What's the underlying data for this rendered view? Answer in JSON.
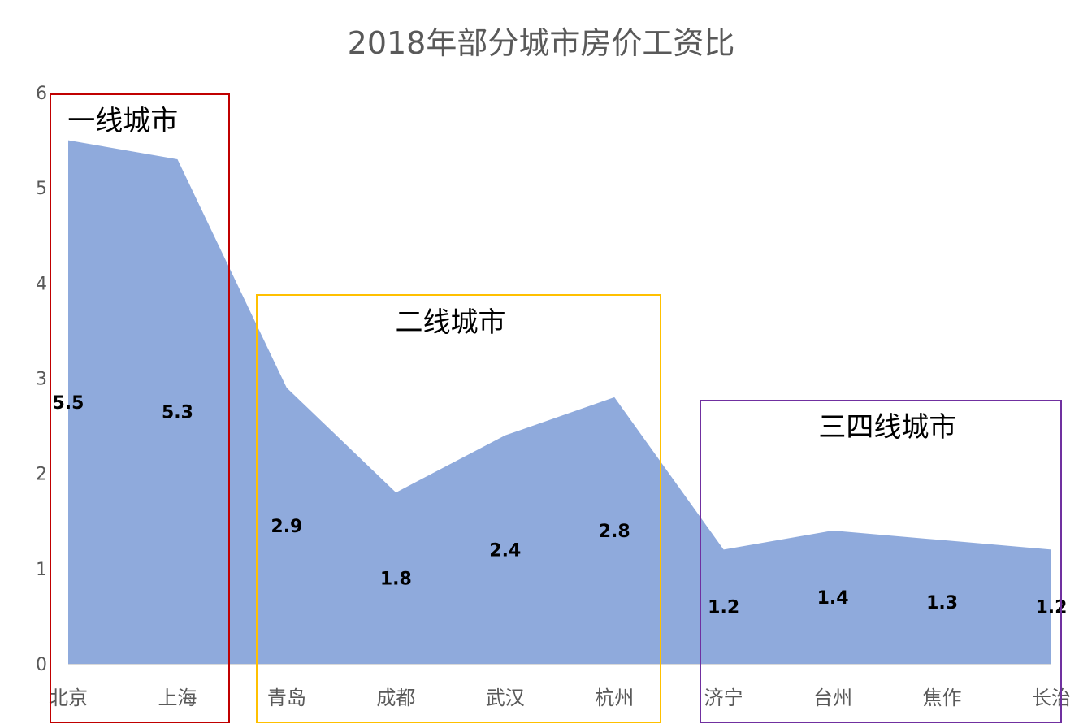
{
  "chart_data": {
    "type": "area",
    "title": "2018年部分城市房价工资比",
    "categories": [
      "北京",
      "上海",
      "青岛",
      "成都",
      "武汉",
      "杭州",
      "济宁",
      "台州",
      "焦作",
      "长治"
    ],
    "values": [
      5.5,
      5.3,
      2.9,
      1.8,
      2.4,
      2.8,
      1.2,
      1.4,
      1.3,
      1.2
    ],
    "data_labels": [
      "5.5",
      "5.3",
      "2.9",
      "1.8",
      "2.4",
      "2.8",
      "1.2",
      "1.4",
      "1.3",
      "1.2"
    ],
    "ylim": [
      0,
      6
    ],
    "yticks": [
      "0",
      "1",
      "2",
      "3",
      "4",
      "5",
      "6"
    ],
    "grid": false,
    "legend": "none",
    "colors": {
      "area": "#8faadc",
      "tier1": "#c00000",
      "tier2": "#ffc000",
      "tier3": "#7030a0"
    },
    "groups": [
      {
        "label": "一线城市",
        "from": 0,
        "to": 1,
        "color": "#c00000"
      },
      {
        "label": "二线城市",
        "from": 2,
        "to": 5,
        "color": "#ffc000"
      },
      {
        "label": "三四线城市",
        "from": 6,
        "to": 9,
        "color": "#7030a0"
      }
    ]
  }
}
